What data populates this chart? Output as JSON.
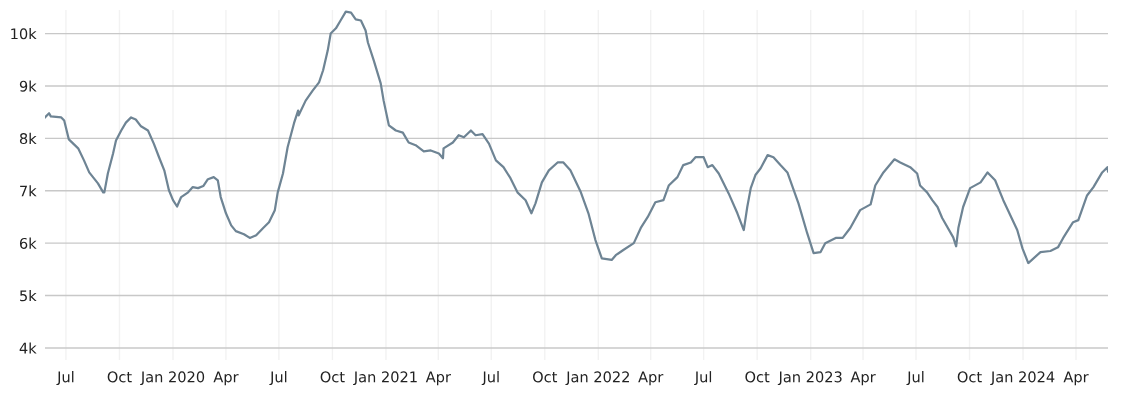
{
  "chart_data": {
    "type": "line",
    "color": "#6e8494",
    "grid": true,
    "marker": "none",
    "line_style": "solid",
    "xlim": [
      "2019-05-26",
      "2024-05-26"
    ],
    "ylim": [
      3770,
      10450
    ],
    "yticks": [
      {
        "value": 4000,
        "label": "4k"
      },
      {
        "value": 5000,
        "label": "5k"
      },
      {
        "value": 6000,
        "label": "6k"
      },
      {
        "value": 7000,
        "label": "7k"
      },
      {
        "value": 8000,
        "label": "8k"
      },
      {
        "value": 9000,
        "label": "9k"
      },
      {
        "value": 10000,
        "label": "10k"
      }
    ],
    "xticks": [
      {
        "value": "2019-07-01",
        "label": "Jul"
      },
      {
        "value": "2019-10-01",
        "label": "Oct"
      },
      {
        "value": "2020-01-01",
        "label": "Jan 2020"
      },
      {
        "value": "2020-04-01",
        "label": "Apr"
      },
      {
        "value": "2020-07-01",
        "label": "Jul"
      },
      {
        "value": "2020-10-01",
        "label": "Oct"
      },
      {
        "value": "2021-01-01",
        "label": "Jan 2021"
      },
      {
        "value": "2021-04-01",
        "label": "Apr"
      },
      {
        "value": "2021-07-01",
        "label": "Jul"
      },
      {
        "value": "2021-10-01",
        "label": "Oct"
      },
      {
        "value": "2022-01-01",
        "label": "Jan 2022"
      },
      {
        "value": "2022-04-01",
        "label": "Apr"
      },
      {
        "value": "2022-07-01",
        "label": "Jul"
      },
      {
        "value": "2022-10-01",
        "label": "Oct"
      },
      {
        "value": "2023-01-01",
        "label": "Jan 2023"
      },
      {
        "value": "2023-04-01",
        "label": "Apr"
      },
      {
        "value": "2023-07-01",
        "label": "Jul"
      },
      {
        "value": "2023-10-01",
        "label": "Oct"
      },
      {
        "value": "2024-01-01",
        "label": "Jan 2024"
      },
      {
        "value": "2024-04-01",
        "label": "Apr"
      }
    ],
    "x": [
      "2019-05-26",
      "2019-06-02",
      "2019-06-05",
      "2019-06-23",
      "2019-06-28",
      "2019-07-06",
      "2019-07-22",
      "2019-08-01",
      "2019-08-10",
      "2019-08-25",
      "2019-09-03",
      "2019-09-05",
      "2019-09-11",
      "2019-09-20",
      "2019-09-25",
      "2019-10-04",
      "2019-10-12",
      "2019-10-21",
      "2019-10-29",
      "2019-11-07",
      "2019-11-19",
      "2019-11-29",
      "2019-12-08",
      "2019-12-17",
      "2019-12-25",
      "2020-01-01",
      "2020-01-08",
      "2020-01-15",
      "2020-01-27",
      "2020-02-04",
      "2020-02-13",
      "2020-02-22",
      "2020-03-01",
      "2020-03-11",
      "2020-03-18",
      "2020-03-23",
      "2020-04-01",
      "2020-04-10",
      "2020-04-18",
      "2020-05-02",
      "2020-05-12",
      "2020-05-23",
      "2020-06-04",
      "2020-06-14",
      "2020-06-24",
      "2020-06-29",
      "2020-07-08",
      "2020-07-16",
      "2020-07-27",
      "2020-08-03",
      "2020-08-04",
      "2020-08-16",
      "2020-08-28",
      "2020-09-08",
      "2020-09-15",
      "2020-09-23",
      "2020-09-28",
      "2020-10-07",
      "2020-10-15",
      "2020-10-24",
      "2020-11-02",
      "2020-11-10",
      "2020-11-19",
      "2020-11-27",
      "2020-12-01",
      "2020-12-11",
      "2020-12-20",
      "2020-12-23",
      "2020-12-28",
      "2021-01-06",
      "2021-01-18",
      "2021-01-30",
      "2021-02-09",
      "2021-02-21",
      "2021-03-07",
      "2021-03-19",
      "2021-04-02",
      "2021-04-09",
      "2021-04-10",
      "2021-04-26",
      "2021-05-06",
      "2021-05-15",
      "2021-05-27",
      "2021-06-04",
      "2021-06-16",
      "2021-06-27",
      "2021-07-09",
      "2021-07-22",
      "2021-08-03",
      "2021-08-15",
      "2021-08-29",
      "2021-09-08",
      "2021-09-15",
      "2021-09-26",
      "2021-10-08",
      "2021-10-23",
      "2021-11-02",
      "2021-11-14",
      "2021-12-02",
      "2021-12-15",
      "2021-12-27",
      "2022-01-07",
      "2022-01-24",
      "2022-01-31",
      "2022-02-13",
      "2022-03-03",
      "2022-03-15",
      "2022-03-27",
      "2022-04-09",
      "2022-04-23",
      "2022-05-02",
      "2022-05-17",
      "2022-05-27",
      "2022-06-09",
      "2022-06-17",
      "2022-07-01",
      "2022-07-08",
      "2022-07-16",
      "2022-07-27",
      "2022-08-13",
      "2022-08-28",
      "2022-09-08",
      "2022-09-14",
      "2022-09-20",
      "2022-09-28",
      "2022-10-07",
      "2022-10-19",
      "2022-10-29",
      "2022-11-10",
      "2022-11-22",
      "2022-12-01",
      "2022-12-11",
      "2022-12-26",
      "2023-01-06",
      "2023-01-18",
      "2023-01-26",
      "2023-02-13",
      "2023-02-25",
      "2023-03-10",
      "2023-03-27",
      "2023-04-14",
      "2023-04-22",
      "2023-05-06",
      "2023-05-25",
      "2023-06-04",
      "2023-06-21",
      "2023-07-03",
      "2023-07-08",
      "2023-07-20",
      "2023-07-29",
      "2023-08-07",
      "2023-08-15",
      "2023-09-03",
      "2023-09-08",
      "2023-09-12",
      "2023-09-20",
      "2023-10-02",
      "2023-10-20",
      "2023-11-01",
      "2023-11-14",
      "2023-11-28",
      "2023-12-22",
      "2023-12-31",
      "2024-01-10",
      "2024-01-31",
      "2024-02-17",
      "2024-03-01",
      "2024-03-10",
      "2024-03-27",
      "2024-04-05",
      "2024-04-20",
      "2024-05-01",
      "2024-05-16",
      "2024-05-25",
      "2024-05-26"
    ],
    "values": [
      8400,
      8480,
      8420,
      8400,
      8340,
      7980,
      7810,
      7580,
      7350,
      7140,
      6970,
      6970,
      7330,
      7710,
      7960,
      8150,
      8300,
      8400,
      8360,
      8230,
      8150,
      7900,
      7640,
      7390,
      7010,
      6820,
      6700,
      6880,
      6970,
      7070,
      7050,
      7090,
      7220,
      7260,
      7200,
      6880,
      6570,
      6340,
      6230,
      6170,
      6100,
      6150,
      6290,
      6400,
      6630,
      6970,
      7330,
      7830,
      8290,
      8530,
      8440,
      8720,
      8910,
      9070,
      9300,
      9680,
      10000,
      10100,
      10250,
      10420,
      10400,
      10270,
      10250,
      10060,
      9830,
      9490,
      9160,
      9050,
      8720,
      8250,
      8150,
      8110,
      7920,
      7870,
      7750,
      7770,
      7710,
      7620,
      7810,
      7920,
      8060,
      8020,
      8150,
      8060,
      8080,
      7900,
      7580,
      7450,
      7240,
      6970,
      6820,
      6570,
      6760,
      7160,
      7390,
      7540,
      7540,
      7390,
      6970,
      6570,
      6060,
      5710,
      5680,
      5770,
      5870,
      6000,
      6290,
      6500,
      6780,
      6820,
      7100,
      7260,
      7490,
      7540,
      7640,
      7640,
      7450,
      7490,
      7330,
      6950,
      6570,
      6250,
      6690,
      7050,
      7300,
      7430,
      7680,
      7640,
      7490,
      7350,
      7070,
      6760,
      6190,
      5810,
      5830,
      6000,
      6100,
      6100,
      6290,
      6630,
      6740,
      7100,
      7350,
      7600,
      7540,
      7450,
      7330,
      7100,
      6970,
      6820,
      6690,
      6480,
      6110,
      5940,
      6300,
      6690,
      7050,
      7160,
      7350,
      7200,
      6820,
      6250,
      5900,
      5620,
      5830,
      5850,
      5920,
      6100,
      6400,
      6440,
      6910,
      7070,
      7350,
      7450,
      7370
    ]
  }
}
